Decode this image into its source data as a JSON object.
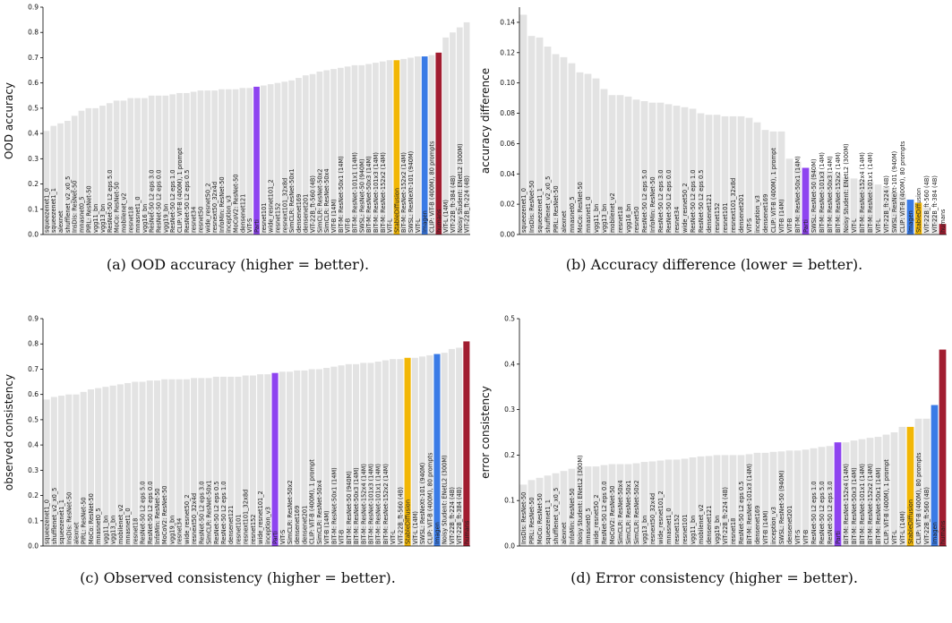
{
  "colors": {
    "default": "#e3e3e3",
    "Parti": "#8e44f0",
    "StableDiffusion": "#f2b705",
    "Imagen": "#3a7be6",
    "humans": "#a11d30"
  },
  "chart_data": [
    {
      "type": "bar",
      "ylabel": "OOD accuracy",
      "ylim": [
        0,
        0.9
      ],
      "yticks": [
        0.0,
        0.1,
        0.2,
        0.3,
        0.4,
        0.5,
        0.6,
        0.7,
        0.8,
        0.9
      ],
      "caption": "(a) OOD accuracy (higher = better).",
      "grid": false,
      "categories": [
        "squeezenet1_0",
        "squeezenet1_1",
        "alexnet",
        "shufflenet_v2_x0_5",
        "InsDis: ResNet-50",
        "mnasnet0_5",
        "PIRL: ResNet-50",
        "vgg11_bn",
        "vgg13_bn",
        "ResNet-50 L2 eps 5.0",
        "MoCo: ResNet-50",
        "mobilenet_v2",
        "resnet18",
        "mnasnet1_0",
        "vgg16_bn",
        "ResNet-50 L2 eps 3.0",
        "ResNet-50 L2 eps 0.0",
        "vgg19_bn",
        "ResNet-50 L2 eps 1.0",
        "CLIP: ViT-B (400M), 1 prompt",
        "ResNet-50 L2 eps 0.5",
        "resnet34",
        "resnet50",
        "wide_resnet50_2",
        "resnext50_32x4d",
        "InfoMin: ResNet-50",
        "inception_v3",
        "MoCoV2: ResNet-50",
        "densenet121",
        "ViT-S",
        "Parti",
        "resnet101",
        "wide_resnet101_2",
        "resnet152",
        "resnext101_32x8d",
        "SimCLR: ResNet-50x1",
        "densenet169",
        "densenet201",
        "ViT-22B_ft-560 (4B)",
        "SimCLR: ResNet-50x2",
        "SimCLR: ResNet-50x4",
        "ViT-B (14M)",
        "BiT-M: ResNet-50x1 (14M)",
        "ViT-B",
        "BiT-M: ResNet-101x1 (14M)",
        "SWSL: ResNet-50 (940M)",
        "BiT-M: ResNet-50x3 (14M)",
        "BiT-M: ResNet-101x3 (14M)",
        "BiT-M: ResNet-152x2 (14M)",
        "ViT-L",
        "StableDiffusion",
        "BiT-M: ResNet-152x2 (14M)",
        "SWSL: ResNeXt-101 (940M)",
        "ViT-L",
        "Imagen",
        "CLIP: ViT-B (400M), 80 prompts",
        "humans",
        "ViT-L (14M)",
        "ViT-22B_ft-384 (4B)",
        "Noisy Student: ENetL2 (300M)",
        "ViT-22B_ft-224 (4B)"
      ],
      "values": [
        0.41,
        0.43,
        0.44,
        0.45,
        0.47,
        0.49,
        0.5,
        0.5,
        0.51,
        0.52,
        0.53,
        0.53,
        0.54,
        0.54,
        0.54,
        0.55,
        0.55,
        0.55,
        0.555,
        0.56,
        0.56,
        0.565,
        0.57,
        0.57,
        0.57,
        0.575,
        0.575,
        0.575,
        0.58,
        0.58,
        0.585,
        0.59,
        0.595,
        0.6,
        0.605,
        0.61,
        0.62,
        0.63,
        0.635,
        0.645,
        0.65,
        0.655,
        0.66,
        0.665,
        0.67,
        0.67,
        0.675,
        0.68,
        0.685,
        0.69,
        0.69,
        0.695,
        0.7,
        0.705,
        0.705,
        0.71,
        0.72,
        0.78,
        0.8,
        0.82,
        0.84
      ]
    },
    {
      "type": "bar",
      "ylabel": "accuracy difference",
      "ylim": [
        0,
        0.15
      ],
      "yticks": [
        0.0,
        0.02,
        0.04,
        0.06,
        0.08,
        0.1,
        0.12,
        0.14
      ],
      "caption": "(b) Accuracy difference (lower = better).",
      "grid": false,
      "categories": [
        "squeezenet1_0",
        "InsDis: ResNet-50",
        "squeezenet1_1",
        "shufflenet_v2_x0_5",
        "PIRL: ResNet-50",
        "alexnet",
        "mnasnet0_5",
        "MoCo: ResNet-50",
        "mnasnet1_0",
        "vgg11_bn",
        "vgg13_bn",
        "mobilenet_v2",
        "resnet18",
        "vgg16_bn",
        "resnet50",
        "ResNet-50 L2 eps 5.0",
        "InfoMin: ResNet-50",
        "ResNet-50 L2 eps 3.0",
        "ResNet-50 L2 eps 0.0",
        "resnet34",
        "wide_resnet50_2",
        "ResNet-50 L2 eps 1.0",
        "ResNet-50 L2 eps 0.5",
        "densenet121",
        "resnet152",
        "resnet101",
        "resnext101_32x8d",
        "densenet201",
        "ViT-S",
        "inception_v3",
        "densenet169",
        "CLIP: ViT-B (400M), 1 prompt",
        "ViT-B (14M)",
        "ViT-B",
        "BiT-M: ResNet-50x1 (14M)",
        "Parti",
        "SWSL: ResNet-50 (940M)",
        "BiT-M: ResNet-101x3 (14M)",
        "BiT-M: ResNet-50x3 (14M)",
        "BiT-M: ResNet-152x2 (14M)",
        "Noisy Student: ENetL2 (300M)",
        "ViT-L",
        "BiT-M: ResNet-152x4 (14M)",
        "BiT-M: ResNet-101x1 (14M)",
        "ViT-L",
        "ViT-22B_ft-224 (4B)",
        "SWSL: ResNeXt-101 (940M)",
        "CLIP: ViT-B (400M), 80 prompts",
        "Imagen",
        "StableDiffusion",
        "ViT-22B_ft-560 (4B)",
        "ViT-22B_ft-384 (4B)",
        "humans"
      ],
      "values": [
        0.145,
        0.131,
        0.13,
        0.124,
        0.119,
        0.117,
        0.113,
        0.107,
        0.106,
        0.103,
        0.096,
        0.092,
        0.092,
        0.091,
        0.089,
        0.088,
        0.087,
        0.087,
        0.086,
        0.085,
        0.084,
        0.083,
        0.08,
        0.079,
        0.079,
        0.078,
        0.078,
        0.078,
        0.077,
        0.074,
        0.069,
        0.068,
        0.068,
        0.05,
        0.048,
        0.044,
        0.043,
        0.042,
        0.041,
        0.04,
        0.038,
        0.037,
        0.036,
        0.035,
        0.033,
        0.031,
        0.028,
        0.027,
        0.023,
        0.021,
        0.018,
        0.013,
        0.007
      ]
    },
    {
      "type": "bar",
      "ylabel": "observed consistency",
      "ylim": [
        0,
        0.9
      ],
      "yticks": [
        0.0,
        0.1,
        0.2,
        0.3,
        0.4,
        0.5,
        0.6,
        0.7,
        0.8,
        0.9
      ],
      "caption": "(c) Observed consistency (higher = better).",
      "grid": false,
      "categories": [
        "squeezenet1_0",
        "shufflenet_v2_x0_5",
        "squeezenet1_1",
        "InsDis: ResNet-50",
        "alexnet",
        "PIRL: ResNet-50",
        "MoCo: ResNet-50",
        "mnasnet0_5",
        "vgg11_bn",
        "vgg13_bn",
        "mobilenet_v2",
        "mnasnet1_0",
        "resnet18",
        "ResNet-50 L2 eps 5.0",
        "ResNet-50 L2 eps 0.0",
        "InfoMin: ResNet-50",
        "MoCoV2: ResNet-50",
        "vgg19_bn",
        "resnet34",
        "wide_resnet50_2",
        "resnext50_32x4d",
        "ResNet-50 L2 eps 3.0",
        "SimCLR: ResNet-50x1",
        "ResNet-50 L2 eps 0.5",
        "ResNet-50 L2 eps 1.0",
        "densenet121",
        "resnet101",
        "resnext101_32x8d",
        "resnet152",
        "wide_resnet101_2",
        "inception_v3",
        "Parti",
        "ViT-S",
        "SimCLR: ResNet-50x2",
        "densenet169",
        "densenet201",
        "CLIP: ViT-B (400M), 1 prompt",
        "SimCLR: ResNet-50x4",
        "ViT-B (14M)",
        "BiT-M: ResNet-50x1 (14M)",
        "ViT-B",
        "BiT-M: ResNet-50 (940M)",
        "BiT-M: ResNet-50x3 (14M)",
        "BiT-M: ResNet-152x4 (14M)",
        "BiT-M: ResNet-101x3 (14M)",
        "BiT-M: ResNet-101x1 (14M)",
        "BiT-M: ResNet-152x2 (14M)",
        "ViT-L",
        "ViT-22B_ft-560 (4B)",
        "StableDiffusion",
        "ViT-L (14M)",
        "SWSL: ResNeXt-101 (940M)",
        "CLIP: ViT-B (400M), 80 prompts",
        "Imagen",
        "Noisy Student: ENetL2 (300M)",
        "ViT-22B_ft-224 (4B)",
        "ViT-22B_ft-384 (4B)",
        "humans"
      ],
      "values": [
        0.58,
        0.59,
        0.595,
        0.6,
        0.6,
        0.61,
        0.62,
        0.625,
        0.63,
        0.635,
        0.64,
        0.645,
        0.65,
        0.65,
        0.655,
        0.655,
        0.66,
        0.66,
        0.66,
        0.66,
        0.665,
        0.665,
        0.665,
        0.67,
        0.67,
        0.67,
        0.67,
        0.675,
        0.675,
        0.68,
        0.68,
        0.685,
        0.69,
        0.69,
        0.695,
        0.695,
        0.7,
        0.7,
        0.705,
        0.71,
        0.715,
        0.72,
        0.72,
        0.725,
        0.725,
        0.73,
        0.735,
        0.74,
        0.74,
        0.745,
        0.745,
        0.75,
        0.755,
        0.76,
        0.765,
        0.78,
        0.785,
        0.81
      ]
    },
    {
      "type": "bar",
      "ylabel": "error consistency",
      "ylim": [
        0,
        0.5
      ],
      "yticks": [
        0.0,
        0.1,
        0.2,
        0.3,
        0.4,
        0.5
      ],
      "caption": "(d) Error consistency (higher = better).",
      "grid": false,
      "categories": [
        "InsDis: ResNet-50",
        "PIRL: ResNet-50",
        "MoCo: ResNet-50",
        "squeezenet1_1",
        "shufflenet_v2_x0_5",
        "alexnet",
        "InfoMin: ResNet-50",
        "Noisy Student: ENetL2 (300M)",
        "mnasnet0_5",
        "wide_resnet50_2",
        "ResNet-50 L2 eps 0.0",
        "MoCoV2: ResNet-50",
        "SimCLR: ResNet-50x4",
        "SimCLR: ResNet-50x1",
        "SimCLR: ResNet-50x2",
        "vgg13_bn",
        "resnext50_32x4d",
        "wide_resnet101_2",
        "mnasnet1_0",
        "resnet152",
        "resnet101",
        "vgg11_bn",
        "mobilenet_v2",
        "densenet121",
        "vgg19_bn",
        "ViT-22B_ft-224 (4B)",
        "resnet18",
        "ResNet-50 L2 eps 0.5",
        "BiT-M: ResNet-101x3 (14M)",
        "densenet169",
        "ViT-B (14M)",
        "inception_v3",
        "SWSL: ResNet-50 (940M)",
        "densenet201",
        "ViT-S",
        "ViT-B",
        "ResNet-50 L2 eps 1.0",
        "ResNet-50 L2 eps 5.0",
        "ResNet-50 L2 eps 3.0",
        "Parti",
        "BiT-M: ResNet-152x4 (14M)",
        "BiT-M: ResNet-50x3 (14M)",
        "BiT-M: ResNet-101x1 (14M)",
        "BiT-M: ResNet-152x2 (14M)",
        "BiT-M: ResNet-50x1 (14M)",
        "CLIP: ViT-B (400M), 1 prompt",
        "ViT-L",
        "ViT-L (14M)",
        "StableDiffusion",
        "CLIP: ViT-B (400M), 80 prompts",
        "ViT-22B_ft-560 (4B)",
        "Imagen",
        "humans"
      ],
      "values": [
        0.135,
        0.145,
        0.15,
        0.155,
        0.16,
        0.165,
        0.17,
        0.175,
        0.175,
        0.175,
        0.178,
        0.18,
        0.18,
        0.18,
        0.182,
        0.185,
        0.186,
        0.188,
        0.19,
        0.19,
        0.192,
        0.195,
        0.197,
        0.198,
        0.2,
        0.2,
        0.2,
        0.2,
        0.202,
        0.205,
        0.205,
        0.207,
        0.208,
        0.21,
        0.21,
        0.212,
        0.215,
        0.218,
        0.22,
        0.228,
        0.228,
        0.232,
        0.235,
        0.238,
        0.24,
        0.245,
        0.25,
        0.262,
        0.262,
        0.28,
        0.28,
        0.31,
        0.432
      ]
    }
  ]
}
